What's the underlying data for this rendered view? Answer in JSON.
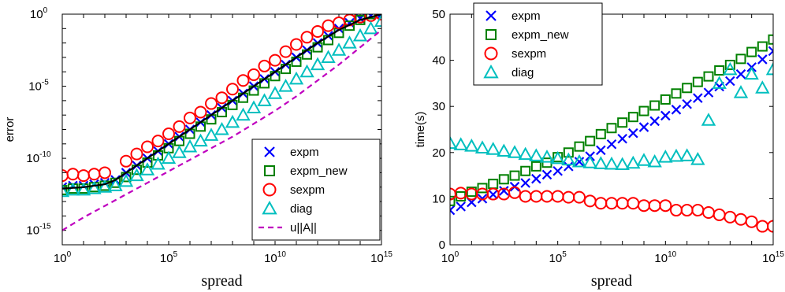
{
  "chart_data": [
    {
      "type": "scatter",
      "xscale": "log",
      "yscale": "log",
      "xlabel": "spread",
      "ylabel": "error",
      "xlim": [
        1,
        1000000000000000.0
      ],
      "ylim": [
        1e-16,
        1
      ],
      "xtick_labels": [
        {
          "base": "10",
          "exp": "0"
        },
        {
          "base": "10",
          "exp": "5"
        },
        {
          "base": "10",
          "exp": "10"
        },
        {
          "base": "10",
          "exp": "15"
        }
      ],
      "ytick_labels": [
        {
          "base": "10",
          "exp": "0"
        },
        {
          "base": "10",
          "exp": "-5"
        },
        {
          "base": "10",
          "exp": "-10"
        },
        {
          "base": "10",
          "exp": "-15"
        }
      ],
      "legend": {
        "placement": "bottom-right",
        "entries": [
          "expm",
          "expm_new",
          "sexpm",
          "diag",
          "u||A||"
        ]
      },
      "series": [
        {
          "name": "expm",
          "marker": "x",
          "color": "#0000ff",
          "x_exp": [
            0,
            0.5,
            1,
            1.5,
            2,
            2.5,
            3,
            3.5,
            4,
            4.5,
            5,
            5.5,
            6,
            6.5,
            7,
            7.5,
            8,
            8.5,
            9,
            9.5,
            10,
            10.5,
            11,
            11.5,
            12,
            12.5,
            13,
            13.5,
            14,
            14.5,
            15
          ],
          "y_exp": [
            -12,
            -11.9,
            -11.9,
            -11.8,
            -11.7,
            -11.5,
            -11.0,
            -10.5,
            -10.0,
            -9.5,
            -9.0,
            -8.5,
            -8.0,
            -7.5,
            -7.0,
            -6.5,
            -6.0,
            -5.5,
            -5.0,
            -4.5,
            -4.0,
            -3.5,
            -3.0,
            -2.5,
            -2.0,
            -1.5,
            -1.0,
            -0.6,
            -0.3,
            -0.1,
            0
          ]
        },
        {
          "name": "expm_new",
          "marker": "square",
          "color": "#008000",
          "x_exp": [
            0,
            0.5,
            1,
            1.5,
            2,
            2.5,
            3,
            3.5,
            4,
            4.5,
            5,
            5.5,
            6,
            6.5,
            7,
            7.5,
            8,
            8.5,
            9,
            9.5,
            10,
            10.5,
            11,
            11.5,
            12,
            12.5,
            13,
            13.5,
            14,
            14.5
          ],
          "y_exp": [
            -12.2,
            -12.1,
            -12.1,
            -12.0,
            -11.9,
            -11.7,
            -11.3,
            -10.8,
            -10.3,
            -9.8,
            -9.3,
            -8.8,
            -8.3,
            -7.8,
            -7.3,
            -6.8,
            -6.3,
            -5.8,
            -5.3,
            -4.8,
            -4.3,
            -3.8,
            -3.3,
            -2.8,
            -2.3,
            -1.8,
            -1.3,
            -0.8,
            -0.4,
            0
          ]
        },
        {
          "name": "sexpm",
          "marker": "circle",
          "color": "#ff0000",
          "x_exp": [
            0,
            0.5,
            1,
            1.5,
            2,
            3,
            3.5,
            4,
            4.5,
            5,
            5.5,
            6,
            6.5,
            7,
            7.5,
            8,
            8.5,
            9,
            9.5,
            10,
            10.5,
            11,
            11.5,
            12,
            12.5,
            13,
            13.5,
            14,
            14.5,
            15
          ],
          "y_exp": [
            -11.2,
            -11.1,
            -11.2,
            -11.1,
            -11.0,
            -10.2,
            -9.7,
            -9.2,
            -8.8,
            -8.3,
            -7.8,
            -7.2,
            -6.8,
            -6.2,
            -5.8,
            -5.2,
            -4.6,
            -4.2,
            -3.6,
            -3.2,
            -2.6,
            -2.1,
            -1.6,
            -1.2,
            -0.8,
            -0.6,
            -0.4,
            -0.2,
            -0.1,
            0
          ]
        },
        {
          "name": "diag",
          "marker": "triangle",
          "color": "#00bfbf",
          "x_exp": [
            0,
            0.5,
            1,
            1.5,
            2,
            2.5,
            3,
            3.5,
            4,
            4.5,
            5,
            5.5,
            6,
            6.5,
            7,
            7.5,
            8,
            8.5,
            9,
            9.5,
            10,
            10.5,
            11,
            11.5,
            12,
            12.5,
            13,
            13.5,
            14,
            14.5,
            15
          ],
          "y_exp": [
            -12.3,
            -12.2,
            -12.2,
            -12.1,
            -12.0,
            -11.9,
            -11.6,
            -11.2,
            -10.8,
            -10.4,
            -10.0,
            -9.6,
            -9.2,
            -8.8,
            -8.4,
            -8.0,
            -7.5,
            -7.0,
            -6.5,
            -6.0,
            -5.5,
            -5.0,
            -4.5,
            -4.0,
            -3.5,
            -3.0,
            -2.5,
            -2.0,
            -1.5,
            -1.0,
            -0.5
          ]
        },
        {
          "name": "u||A||",
          "marker": "dashed-line",
          "color": "#bf00bf",
          "x_exp": [
            0,
            1,
            2,
            3,
            4,
            5,
            6,
            7,
            8,
            9,
            10,
            11,
            12,
            13,
            14,
            15
          ],
          "y_exp": [
            -15.0,
            -14.1,
            -13.3,
            -12.5,
            -11.7,
            -10.9,
            -10.1,
            -9.3,
            -8.5,
            -7.6,
            -6.7,
            -5.7,
            -4.6,
            -3.5,
            -2.3,
            -1.1
          ]
        },
        {
          "name": "",
          "marker": "solid-line",
          "color": "#000000",
          "x_exp": [
            0,
            1,
            2,
            2.5,
            3,
            4,
            5,
            6,
            7,
            8,
            9,
            10,
            11,
            12,
            13,
            14,
            15
          ],
          "y_exp": [
            -12.1,
            -12.0,
            -11.8,
            -11.5,
            -11.0,
            -10.0,
            -9.0,
            -8.0,
            -7.0,
            -6.0,
            -5.0,
            -4.0,
            -3.0,
            -2.0,
            -1.1,
            -0.4,
            0
          ]
        }
      ]
    },
    {
      "type": "scatter",
      "xscale": "log",
      "yscale": "linear",
      "xlabel": "spread",
      "ylabel": "time(s)",
      "xlim": [
        1,
        1000000000000000.0
      ],
      "ylim": [
        0,
        50
      ],
      "xtick_labels": [
        {
          "base": "10",
          "exp": "0"
        },
        {
          "base": "10",
          "exp": "5"
        },
        {
          "base": "10",
          "exp": "10"
        },
        {
          "base": "10",
          "exp": "15"
        }
      ],
      "yticks": [
        "0",
        "10",
        "20",
        "30",
        "40",
        "50"
      ],
      "legend": {
        "placement": "top-left",
        "entries": [
          "expm",
          "expm_new",
          "sexpm",
          "diag"
        ]
      },
      "series": [
        {
          "name": "expm",
          "marker": "x",
          "color": "#0000ff",
          "x_exp": [
            0,
            0.5,
            1,
            1.5,
            2,
            2.5,
            3,
            3.5,
            4,
            4.5,
            5,
            5.5,
            6,
            6.5,
            7,
            7.5,
            8,
            8.5,
            9,
            9.5,
            10,
            10.5,
            11,
            11.5,
            12,
            12.5,
            13,
            13.5,
            14,
            14.5,
            15
          ],
          "y": [
            7.5,
            8.3,
            9.2,
            10.0,
            10.9,
            11.7,
            12.6,
            13.4,
            14.3,
            15.2,
            16.0,
            17.0,
            18.0,
            19.2,
            20.5,
            21.8,
            23.0,
            24.2,
            25.5,
            26.8,
            28.0,
            29.3,
            30.5,
            31.8,
            33.0,
            34.3,
            35.5,
            37.0,
            38.5,
            40.2,
            42.0
          ]
        },
        {
          "name": "expm_new",
          "marker": "square",
          "color": "#008000",
          "x_exp": [
            0,
            0.5,
            1,
            1.5,
            2,
            2.5,
            3,
            3.5,
            4,
            4.5,
            5,
            5.5,
            6,
            6.5,
            7,
            7.5,
            8,
            8.5,
            9,
            9.5,
            10,
            10.5,
            11,
            11.5,
            12,
            12.5,
            13,
            13.5,
            14,
            14.5,
            15
          ],
          "y": [
            9.5,
            10.5,
            11.5,
            12.3,
            13.2,
            14.2,
            15.0,
            16.0,
            17.0,
            17.8,
            19.0,
            20.0,
            21.3,
            22.5,
            24.0,
            25.3,
            26.5,
            27.7,
            29.0,
            30.2,
            31.5,
            32.8,
            34.0,
            35.3,
            36.5,
            37.8,
            39.0,
            40.3,
            41.8,
            43.0,
            44.5
          ]
        },
        {
          "name": "sexpm",
          "marker": "circle",
          "color": "#ff0000",
          "x_exp": [
            0,
            0.5,
            1,
            1.5,
            2,
            2.5,
            3,
            3.5,
            4,
            4.5,
            5,
            5.5,
            6,
            6.5,
            7,
            7.5,
            8,
            8.5,
            9,
            9.5,
            10,
            10.5,
            11,
            11.5,
            12,
            12.5,
            13,
            13.5,
            14,
            14.5,
            15
          ],
          "y": [
            11.0,
            11.2,
            11.0,
            11.0,
            11.0,
            11.0,
            11.3,
            10.5,
            10.5,
            10.5,
            10.5,
            10.3,
            10.3,
            9.5,
            9.0,
            9.0,
            9.0,
            9.0,
            8.5,
            8.5,
            8.5,
            7.5,
            7.5,
            7.5,
            7.0,
            6.5,
            6.0,
            5.5,
            5.0,
            4.0,
            4.0
          ]
        },
        {
          "name": "diag",
          "marker": "triangle",
          "color": "#00bfbf",
          "x_exp": [
            0,
            0.5,
            1,
            1.5,
            2,
            2.5,
            3,
            3.5,
            4,
            4.5,
            5,
            5.5,
            6,
            6.5,
            7,
            7.5,
            8,
            8.5,
            9,
            9.5,
            10,
            10.5,
            11,
            11.5,
            12,
            12.5,
            13,
            13.5,
            14,
            14.5,
            15
          ],
          "y": [
            22.0,
            21.7,
            21.4,
            21.0,
            20.7,
            20.3,
            20.0,
            19.6,
            19.3,
            19.0,
            18.7,
            18.4,
            18.0,
            17.8,
            17.6,
            17.5,
            17.4,
            17.7,
            18.3,
            18.0,
            19.0,
            19.2,
            19.3,
            18.5,
            27.0,
            35.0,
            38.0,
            33.0,
            37.0,
            34.0,
            38.0
          ]
        }
      ]
    }
  ]
}
